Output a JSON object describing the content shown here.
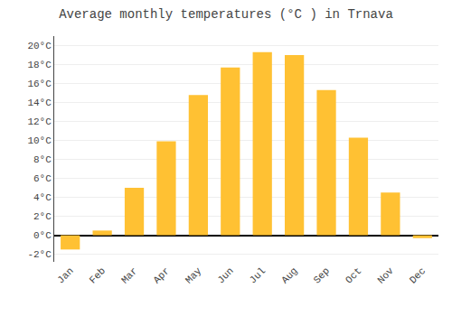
{
  "chart_data": {
    "type": "bar",
    "title": "Average monthly temperatures (°C ) in Trnava",
    "categories": [
      "Jan",
      "Feb",
      "Mar",
      "Apr",
      "May",
      "Jun",
      "Jul",
      "Aug",
      "Sep",
      "Oct",
      "Nov",
      "Dec"
    ],
    "values": [
      -1.5,
      0.5,
      5.0,
      9.9,
      14.8,
      17.7,
      19.3,
      19.0,
      15.3,
      10.3,
      4.5,
      -0.3
    ],
    "color": "#FFC133",
    "ylim": [
      -2.8,
      21.0
    ],
    "yticks": [
      {
        "value": -2,
        "label": "-2°C"
      },
      {
        "value": 0,
        "label": "0°C"
      },
      {
        "value": 2,
        "label": "2°C"
      },
      {
        "value": 4,
        "label": "4°C"
      },
      {
        "value": 6,
        "label": "6°C"
      },
      {
        "value": 8,
        "label": "8°C"
      },
      {
        "value": 10,
        "label": "10°C"
      },
      {
        "value": 12,
        "label": "12°C"
      },
      {
        "value": 14,
        "label": "14°C"
      },
      {
        "value": 16,
        "label": "16°C"
      },
      {
        "value": 18,
        "label": "18°C"
      },
      {
        "value": 20,
        "label": "20°C"
      }
    ],
    "grid": true
  }
}
